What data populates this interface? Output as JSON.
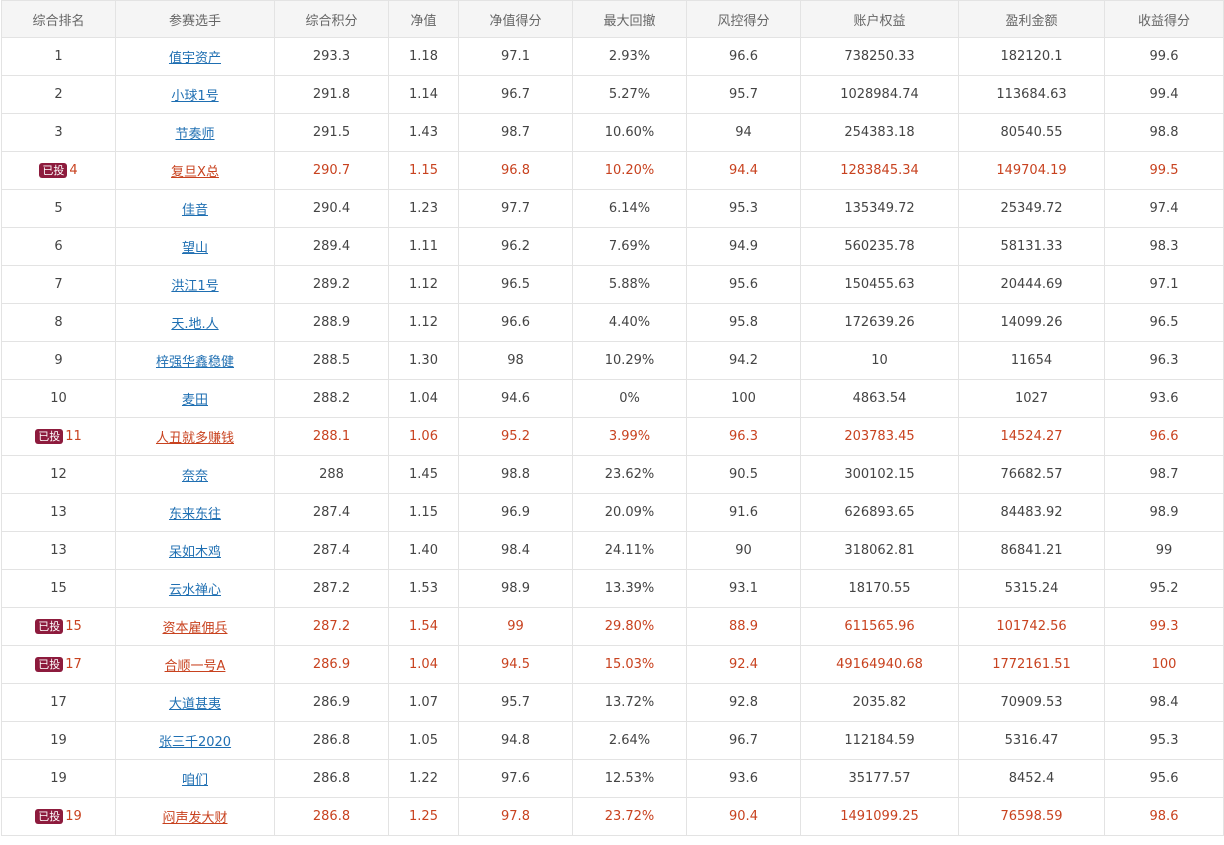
{
  "headers": [
    "综合排名",
    "参赛选手",
    "综合积分",
    "净值",
    "净值得分",
    "最大回撤",
    "风控得分",
    "账户权益",
    "盈利金额",
    "收益得分"
  ],
  "badge_label": "已投",
  "rows": [
    {
      "rank": "1",
      "name": "值宇资产",
      "score": "293.3",
      "nav": "1.18",
      "nav_score": "97.1",
      "drawdown": "2.93%",
      "risk_score": "96.6",
      "equity": "738250.33",
      "profit": "182120.1",
      "return_score": "99.6",
      "invested": false
    },
    {
      "rank": "2",
      "name": "小球1号",
      "score": "291.8",
      "nav": "1.14",
      "nav_score": "96.7",
      "drawdown": "5.27%",
      "risk_score": "95.7",
      "equity": "1028984.74",
      "profit": "113684.63",
      "return_score": "99.4",
      "invested": false
    },
    {
      "rank": "3",
      "name": "节奏师",
      "score": "291.5",
      "nav": "1.43",
      "nav_score": "98.7",
      "drawdown": "10.60%",
      "risk_score": "94",
      "equity": "254383.18",
      "profit": "80540.55",
      "return_score": "98.8",
      "invested": false
    },
    {
      "rank": "4",
      "name": "复旦X总",
      "score": "290.7",
      "nav": "1.15",
      "nav_score": "96.8",
      "drawdown": "10.20%",
      "risk_score": "94.4",
      "equity": "1283845.34",
      "profit": "149704.19",
      "return_score": "99.5",
      "invested": true
    },
    {
      "rank": "5",
      "name": "佳音",
      "score": "290.4",
      "nav": "1.23",
      "nav_score": "97.7",
      "drawdown": "6.14%",
      "risk_score": "95.3",
      "equity": "135349.72",
      "profit": "25349.72",
      "return_score": "97.4",
      "invested": false
    },
    {
      "rank": "6",
      "name": "望山",
      "score": "289.4",
      "nav": "1.11",
      "nav_score": "96.2",
      "drawdown": "7.69%",
      "risk_score": "94.9",
      "equity": "560235.78",
      "profit": "58131.33",
      "return_score": "98.3",
      "invested": false
    },
    {
      "rank": "7",
      "name": "洪江1号",
      "score": "289.2",
      "nav": "1.12",
      "nav_score": "96.5",
      "drawdown": "5.88%",
      "risk_score": "95.6",
      "equity": "150455.63",
      "profit": "20444.69",
      "return_score": "97.1",
      "invested": false
    },
    {
      "rank": "8",
      "name": "天.地.人",
      "score": "288.9",
      "nav": "1.12",
      "nav_score": "96.6",
      "drawdown": "4.40%",
      "risk_score": "95.8",
      "equity": "172639.26",
      "profit": "14099.26",
      "return_score": "96.5",
      "invested": false
    },
    {
      "rank": "9",
      "name": "梓强华鑫稳健",
      "score": "288.5",
      "nav": "1.30",
      "nav_score": "98",
      "drawdown": "10.29%",
      "risk_score": "94.2",
      "equity": "10",
      "profit": "11654",
      "return_score": "96.3",
      "invested": false
    },
    {
      "rank": "10",
      "name": "麦田",
      "score": "288.2",
      "nav": "1.04",
      "nav_score": "94.6",
      "drawdown": "0%",
      "risk_score": "100",
      "equity": "4863.54",
      "profit": "1027",
      "return_score": "93.6",
      "invested": false
    },
    {
      "rank": "11",
      "name": "人丑就多赚钱",
      "score": "288.1",
      "nav": "1.06",
      "nav_score": "95.2",
      "drawdown": "3.99%",
      "risk_score": "96.3",
      "equity": "203783.45",
      "profit": "14524.27",
      "return_score": "96.6",
      "invested": true
    },
    {
      "rank": "12",
      "name": "奈奈",
      "score": "288",
      "nav": "1.45",
      "nav_score": "98.8",
      "drawdown": "23.62%",
      "risk_score": "90.5",
      "equity": "300102.15",
      "profit": "76682.57",
      "return_score": "98.7",
      "invested": false
    },
    {
      "rank": "13",
      "name": "东来东往",
      "score": "287.4",
      "nav": "1.15",
      "nav_score": "96.9",
      "drawdown": "20.09%",
      "risk_score": "91.6",
      "equity": "626893.65",
      "profit": "84483.92",
      "return_score": "98.9",
      "invested": false
    },
    {
      "rank": "13",
      "name": "呆如木鸡",
      "score": "287.4",
      "nav": "1.40",
      "nav_score": "98.4",
      "drawdown": "24.11%",
      "risk_score": "90",
      "equity": "318062.81",
      "profit": "86841.21",
      "return_score": "99",
      "invested": false
    },
    {
      "rank": "15",
      "name": "云水禅心",
      "score": "287.2",
      "nav": "1.53",
      "nav_score": "98.9",
      "drawdown": "13.39%",
      "risk_score": "93.1",
      "equity": "18170.55",
      "profit": "5315.24",
      "return_score": "95.2",
      "invested": false
    },
    {
      "rank": "15",
      "name": "资本雇佣兵",
      "score": "287.2",
      "nav": "1.54",
      "nav_score": "99",
      "drawdown": "29.80%",
      "risk_score": "88.9",
      "equity": "611565.96",
      "profit": "101742.56",
      "return_score": "99.3",
      "invested": true
    },
    {
      "rank": "17",
      "name": "合顺一号A",
      "score": "286.9",
      "nav": "1.04",
      "nav_score": "94.5",
      "drawdown": "15.03%",
      "risk_score": "92.4",
      "equity": "49164940.68",
      "profit": "1772161.51",
      "return_score": "100",
      "invested": true
    },
    {
      "rank": "17",
      "name": "大道甚夷",
      "score": "286.9",
      "nav": "1.07",
      "nav_score": "95.7",
      "drawdown": "13.72%",
      "risk_score": "92.8",
      "equity": "2035.82",
      "profit": "70909.53",
      "return_score": "98.4",
      "invested": false
    },
    {
      "rank": "19",
      "name": "张三千2020",
      "score": "286.8",
      "nav": "1.05",
      "nav_score": "94.8",
      "drawdown": "2.64%",
      "risk_score": "96.7",
      "equity": "112184.59",
      "profit": "5316.47",
      "return_score": "95.3",
      "invested": false
    },
    {
      "rank": "19",
      "name": "咱们",
      "score": "286.8",
      "nav": "1.22",
      "nav_score": "97.6",
      "drawdown": "12.53%",
      "risk_score": "93.6",
      "equity": "35177.57",
      "profit": "8452.4",
      "return_score": "95.6",
      "invested": false
    },
    {
      "rank": "19",
      "name": "闷声发大财",
      "score": "286.8",
      "nav": "1.25",
      "nav_score": "97.8",
      "drawdown": "23.72%",
      "risk_score": "90.4",
      "equity": "1491099.25",
      "profit": "76598.59",
      "return_score": "98.6",
      "invested": true
    }
  ],
  "colors": {
    "highlight": "#c8421f",
    "link": "#1f6fb2",
    "badge_bg": "#8d1b3d",
    "header_bg": "#f5f5f5",
    "border": "#e3e3e3"
  }
}
